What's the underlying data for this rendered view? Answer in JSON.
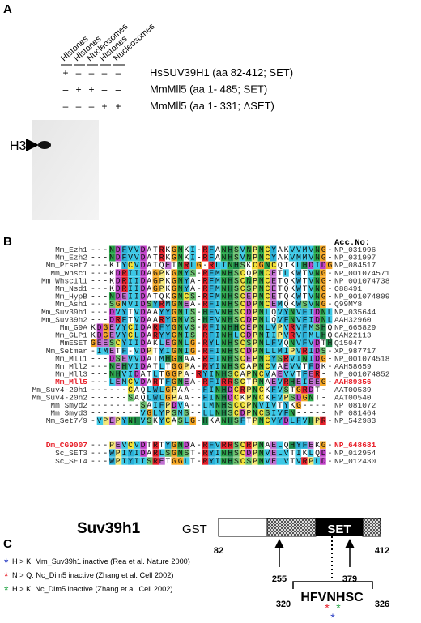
{
  "panel_a": {
    "label": "A",
    "columns": [
      "Histones",
      "Histones",
      "Nucleosomes",
      "Histones",
      "Nucleosomes"
    ],
    "rows": [
      {
        "signs": [
          "+",
          "–",
          "–",
          "–",
          "–"
        ],
        "label": "HsSUV39H1 (aa 82-412; SET)"
      },
      {
        "signs": [
          "–",
          "+",
          "+",
          "–",
          "–"
        ],
        "label": "MmMll5 (aa 1- 485; SET)"
      },
      {
        "signs": [
          "–",
          "–",
          "–",
          "+",
          "+"
        ],
        "label": "MmMll5 (aa 1- 331; ΔSET)"
      }
    ],
    "marker": "H3"
  },
  "panel_b": {
    "label": "B",
    "header": "Acc.No:",
    "rows": [
      {
        "name": "Mm_Ezh1",
        "sequence": "---NDFVVDATRKGNKI-RFANHSVNPNCYAKVVMVNG-",
        "accession": "NP_031996"
      },
      {
        "name": "Mm_Ezh2",
        "sequence": "---NDFVVDATRKGNKI-RFANHSVNPNCYAKVMMVNG-",
        "accession": "NP_031997"
      },
      {
        "name": "Mm_Prset7",
        "sequence": "---KTYCVDATQETNRLG-RLINHSKCGNCQTKLHDIDG",
        "accession": "NP_084517"
      },
      {
        "name": "Mm_Whsc1",
        "sequence": "---KDRIIDAGPKGNYS-RFMNHSCQPNCETLKWTVNG-",
        "accession": "NP_001074571"
      },
      {
        "name": "Mm_Whsc1l1",
        "sequence": "---KDRIIDAGPKGNYA-RFMNHSCNPNCETQKWTVNG-",
        "accession": "NP_001074738"
      },
      {
        "name": "Mm_Nsd1",
        "sequence": "---KDRIIDAGPKGNYA-RFMNHSCSPNCETQKWTVNG-",
        "accession": "O88491"
      },
      {
        "name": "Mm_HypB",
        "sequence": "---NDEIIDATQKGNCS-RFMNHSCEPNCETQKWTVNG-",
        "accession": "NP_001074809"
      },
      {
        "name": "Mm_Ash1",
        "sequence": "---SGMVIDSYRMGNEA-RFINHSCDPNCEMQKWSVNG-",
        "accession": "Q99MY8"
      },
      {
        "name": "Mm_Suv39h1",
        "sequence": "---DVYTVDAAYYGNIS-HFVNHSCDPNLQVYNVFIDNL",
        "accession": "NP_035644"
      },
      {
        "name": "Mm_Suv39h2",
        "sequence": "---DRFTVDAARYGNVS-HFVNHSCDPNLQVFNVFIDNL",
        "accession": "AAH32960"
      },
      {
        "name": "Mm_G9A",
        "sequence": "KDGEVYCIDARFYGNVS-RFINHHCEPNLVPVRVFMSHQ",
        "accession": "NP_665829"
      },
      {
        "name": "Mm_GLP1",
        "sequence": "KDGEVYCLDARYYGNIS-RFINHLCDPNIIPVRVFMLHQ",
        "accession": "CAM22113"
      },
      {
        "name": "MmESET",
        "sequence": "GEESCYIIDAKLEGNLG-RYLNHSCSPNLFVQNVFVDTH",
        "accession": "Q15047"
      },
      {
        "name": "Mm_Setmar",
        "sequence": "-IMETF-VDPTYIGNIG-RFINHSCDPNLLMIPVRIDS-",
        "accession": "XP_987717"
      },
      {
        "name": "Mm_Mll1",
        "sequence": "---DSEVVDATMHGNAA-RFINHSCEPNCYSRVINIDG-",
        "accession": "NP_001074518"
      },
      {
        "name": "Mm_Mll2",
        "sequence": "---NEHVIDATLTGGPA-RYINHSCAPNCVAEVVTFDK-",
        "accession": "AAH58659"
      },
      {
        "name": "Mm_Mll3",
        "sequence": "---NHVIDATLTGGPA-RYINHSCAPNCVAEVVTFER-",
        "accession": "NP_001074852"
      },
      {
        "name": "Mm_Mll5",
        "sequence": "---LEMCVDARTFGNEA-RFIRRSCTPNAEVRHEIEEG-",
        "accession": "AAH89356",
        "color": "#e8202a"
      },
      {
        "name": "Mm_Suv4-20h1",
        "sequence": "------CAQLWLGPAA--FINHDCRPNCKFVSTGRDT-",
        "accession": "AAT00539"
      },
      {
        "name": "Mm_Suv4-20h2",
        "sequence": "------SAQLWLGPAA--FINHDCKPNCKFVPSDGNT-",
        "accession": "AAT00540"
      },
      {
        "name": "Mm_Smyd2",
        "sequence": "--------SAIFPDVA--LMNHSCCPNVIVTYKG----",
        "accession": "NP_081072"
      },
      {
        "name": "Mm_Smyd3",
        "sequence": "--------VGLYPSMS--LLNHSCDPNCSIVFN-----",
        "accession": "NP_081464"
      },
      {
        "name": "Mm_Set7/9",
        "sequence": "-VPEPYNHVSKYCASLG-HKANHSFTPNCVYDLFVHPR-",
        "accession": "NP_542983"
      },
      {
        "name": "Dm_CG9007",
        "sequence": "---PEVCVDTRTYGNDA-RFVRRSCRPNAELQHYFEKG-",
        "accession": "NP_648681",
        "color": "#e8202a"
      },
      {
        "name": "Sc_SET3",
        "sequence": "---WPIYIDARLSGNST-RYINHSCDPNVELVTIKLQD-",
        "accession": "NP_012954"
      },
      {
        "name": "Sc_SET4",
        "sequence": "---WPIYIISRETGGLT-RYINHSCSPNVELVTVRPLD-",
        "accession": "NP_012430"
      }
    ]
  },
  "panel_c": {
    "label": "C",
    "title": "Suv39h1",
    "tag": "GST",
    "domain": "SET",
    "positions": [
      "82",
      "412",
      "255",
      "379"
    ],
    "motif": "HFVNHSC",
    "motif_start": "320",
    "motif_end": "326",
    "legend": [
      {
        "star": "*",
        "color": "#2b3fc4",
        "text": "H > K: Mm_Suv39h1 inactive (Rea et al. Nature 2000)"
      },
      {
        "star": "*",
        "color": "#e8202a",
        "text": "N > Q: Nc_Dim5 inactive (Zhang et al. Cell 2002)"
      },
      {
        "star": "*",
        "color": "#2aa84a",
        "text": "H > K: Nc_Dim5 inactive (Zhang et al. Cell 2002)"
      }
    ]
  }
}
